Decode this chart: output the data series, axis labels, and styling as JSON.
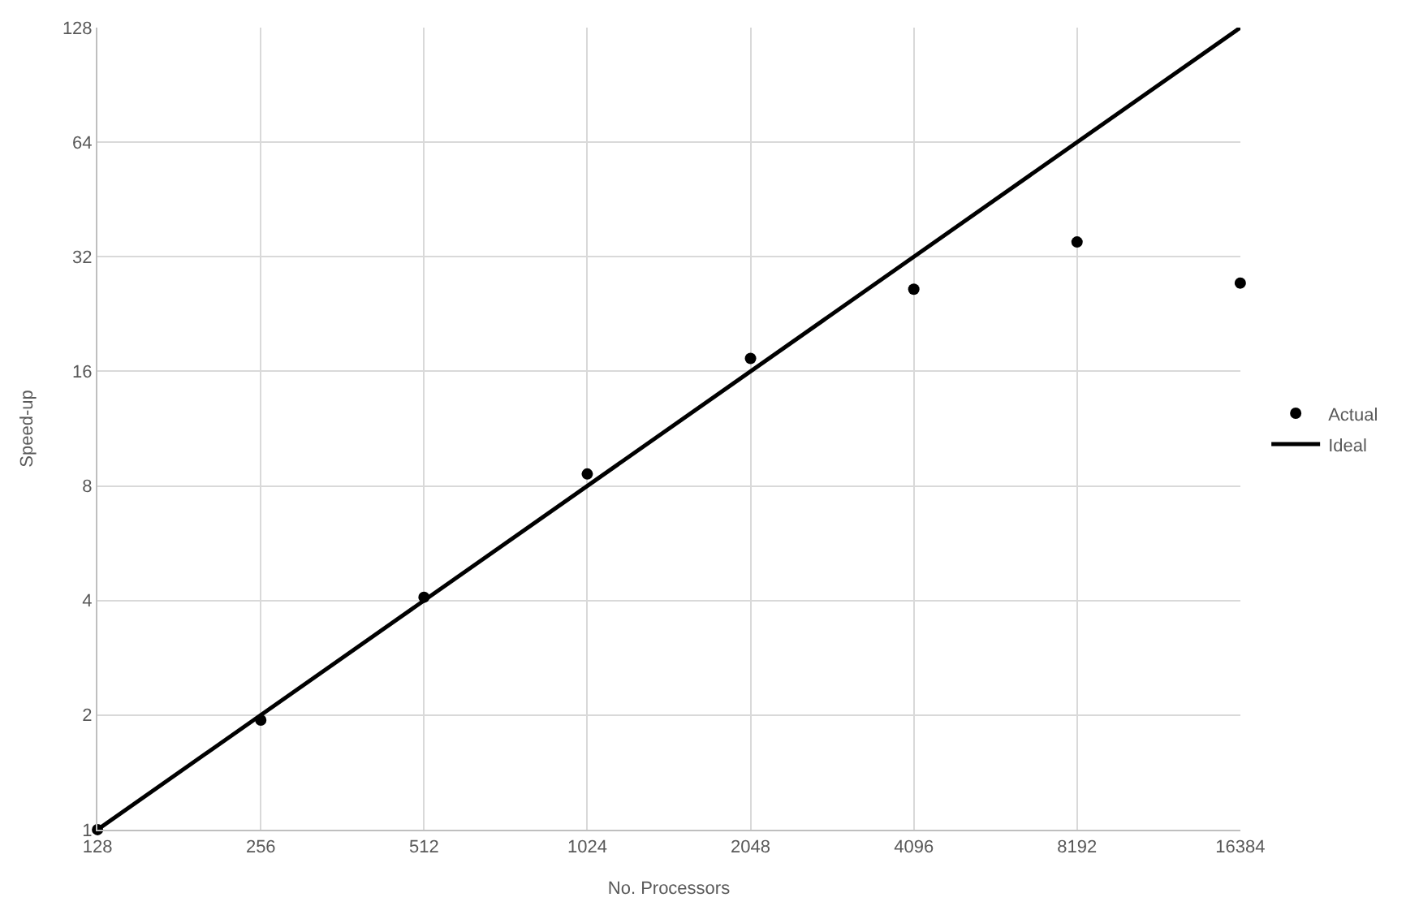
{
  "chart_data": {
    "type": "scatter",
    "xlabel": "No. Processors",
    "ylabel": "Speed-up",
    "log": "xy",
    "grid": true,
    "legend": "right",
    "xlim": [
      128,
      16384
    ],
    "xticks": [
      128,
      256,
      512,
      1024,
      2048,
      4096,
      8192,
      16384
    ],
    "ylim": [
      1,
      128
    ],
    "yticks": [
      1,
      2,
      4,
      8,
      16,
      32,
      64,
      128
    ],
    "series": [
      {
        "name": "Actual",
        "marker": "circle",
        "color": "#000000",
        "x": [
          128,
          256,
          512,
          1024,
          2048,
          4096,
          8192,
          16384
        ],
        "values": [
          1,
          1.94,
          4.08,
          8.6,
          17.3,
          26.3,
          35,
          27.3
        ]
      },
      {
        "name": "Ideal",
        "type": "line",
        "marker": "none",
        "line_style": "solid",
        "color": "#000000",
        "x": [
          128,
          16384
        ],
        "values": [
          1,
          128
        ]
      }
    ]
  }
}
